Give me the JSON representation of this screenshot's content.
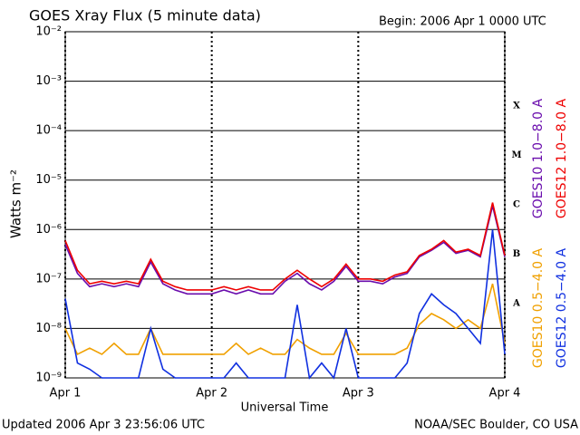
{
  "chart_data": {
    "type": "line",
    "title": "GOES Xray Flux (5 minute data)",
    "subtitle": "Begin:  2006 Apr 1 0000 UTC",
    "x_label": "Universal Time",
    "y_label": "Watts m⁻²",
    "footer_left": "Updated 2006 Apr  3 23:56:06 UTC",
    "footer_right": "NOAA/SEC Boulder, CO USA",
    "log_y": true,
    "grid": true,
    "x": [
      0,
      2,
      4,
      6,
      8,
      10,
      12,
      14,
      16,
      18,
      20,
      22,
      24,
      26,
      28,
      30,
      32,
      34,
      36,
      38,
      40,
      42,
      44,
      46,
      48,
      50,
      52,
      54,
      56,
      58,
      60,
      62,
      64,
      66,
      68,
      70,
      72
    ],
    "xlim": [
      0,
      72
    ],
    "xticks": [
      {
        "value": 0,
        "label": "Apr 1"
      },
      {
        "value": 24,
        "label": "Apr 2"
      },
      {
        "value": 48,
        "label": "Apr 3"
      },
      {
        "value": 72,
        "label": "Apr 4"
      }
    ],
    "ylim": [
      1e-09,
      0.01
    ],
    "yticks": [
      {
        "value": 1e-09,
        "label": "10⁻⁹"
      },
      {
        "value": 1e-08,
        "label": "10⁻⁸"
      },
      {
        "value": 1e-07,
        "label": "10⁻⁷"
      },
      {
        "value": 1e-06,
        "label": "10⁻⁶"
      },
      {
        "value": 1e-05,
        "label": "10⁻⁵"
      },
      {
        "value": 0.0001,
        "label": "10⁻⁴"
      },
      {
        "value": 0.001,
        "label": "10⁻³"
      },
      {
        "value": 0.01,
        "label": "10⁻²"
      }
    ],
    "flare_classes": [
      {
        "label": "A",
        "value": 1e-08
      },
      {
        "label": "B",
        "value": 1e-07
      },
      {
        "label": "C",
        "value": 1e-06
      },
      {
        "label": "M",
        "value": 1e-05
      },
      {
        "label": "X",
        "value": 0.0001
      }
    ],
    "series": [
      {
        "name": "GOES10 1.0−8.0 A",
        "color": "#6a0dad",
        "values": [
          5e-07,
          1.3e-07,
          7e-08,
          8e-08,
          7e-08,
          8e-08,
          7e-08,
          2.2e-07,
          8e-08,
          6e-08,
          5e-08,
          5e-08,
          5e-08,
          6e-08,
          5e-08,
          6e-08,
          5e-08,
          5e-08,
          9e-08,
          1.3e-07,
          8e-08,
          6e-08,
          9e-08,
          1.8e-07,
          9e-08,
          9e-08,
          8e-08,
          1.1e-07,
          1.3e-07,
          2.8e-07,
          3.8e-07,
          5.5e-07,
          3.3e-07,
          3.8e-07,
          2.8e-07,
          3e-06,
          2.8e-07
        ]
      },
      {
        "name": "GOES12 1.0−8.0 A",
        "color": "#ee0000",
        "values": [
          6e-07,
          1.5e-07,
          8e-08,
          9e-08,
          8e-08,
          9e-08,
          8e-08,
          2.5e-07,
          9e-08,
          7e-08,
          6e-08,
          6e-08,
          6e-08,
          7e-08,
          6e-08,
          7e-08,
          6e-08,
          6e-08,
          1e-07,
          1.5e-07,
          1e-07,
          7e-08,
          1e-07,
          2e-07,
          1e-07,
          1e-07,
          9e-08,
          1.2e-07,
          1.4e-07,
          3e-07,
          4e-07,
          6e-07,
          3.5e-07,
          4e-07,
          3e-07,
          3.5e-06,
          3e-07
        ]
      },
      {
        "name": "GOES10 0.5−4.0 A",
        "color": "#f0a000",
        "values": [
          1e-08,
          3e-09,
          4e-09,
          3e-09,
          5e-09,
          3e-09,
          3e-09,
          1e-08,
          3e-09,
          3e-09,
          3e-09,
          3e-09,
          3e-09,
          3e-09,
          5e-09,
          3e-09,
          4e-09,
          3e-09,
          3e-09,
          6e-09,
          4e-09,
          3e-09,
          3e-09,
          8e-09,
          3e-09,
          3e-09,
          3e-09,
          3e-09,
          4e-09,
          1.2e-08,
          2e-08,
          1.5e-08,
          1e-08,
          1.5e-08,
          1e-08,
          8e-08,
          5e-09
        ]
      },
      {
        "name": "GOES12 0.5−4.0 A",
        "color": "#1030e0",
        "values": [
          4e-08,
          2e-09,
          1.5e-09,
          1e-09,
          1e-09,
          1e-09,
          1e-09,
          1e-08,
          1.5e-09,
          1e-09,
          1e-09,
          1e-09,
          1e-09,
          1e-09,
          2e-09,
          1e-09,
          1e-09,
          1e-09,
          1e-09,
          3e-08,
          1e-09,
          2e-09,
          1e-09,
          1e-08,
          1e-09,
          1e-09,
          1e-09,
          1e-09,
          2e-09,
          2e-08,
          5e-08,
          3e-08,
          2e-08,
          1e-08,
          5e-09,
          1e-06,
          3e-09
        ]
      }
    ]
  }
}
